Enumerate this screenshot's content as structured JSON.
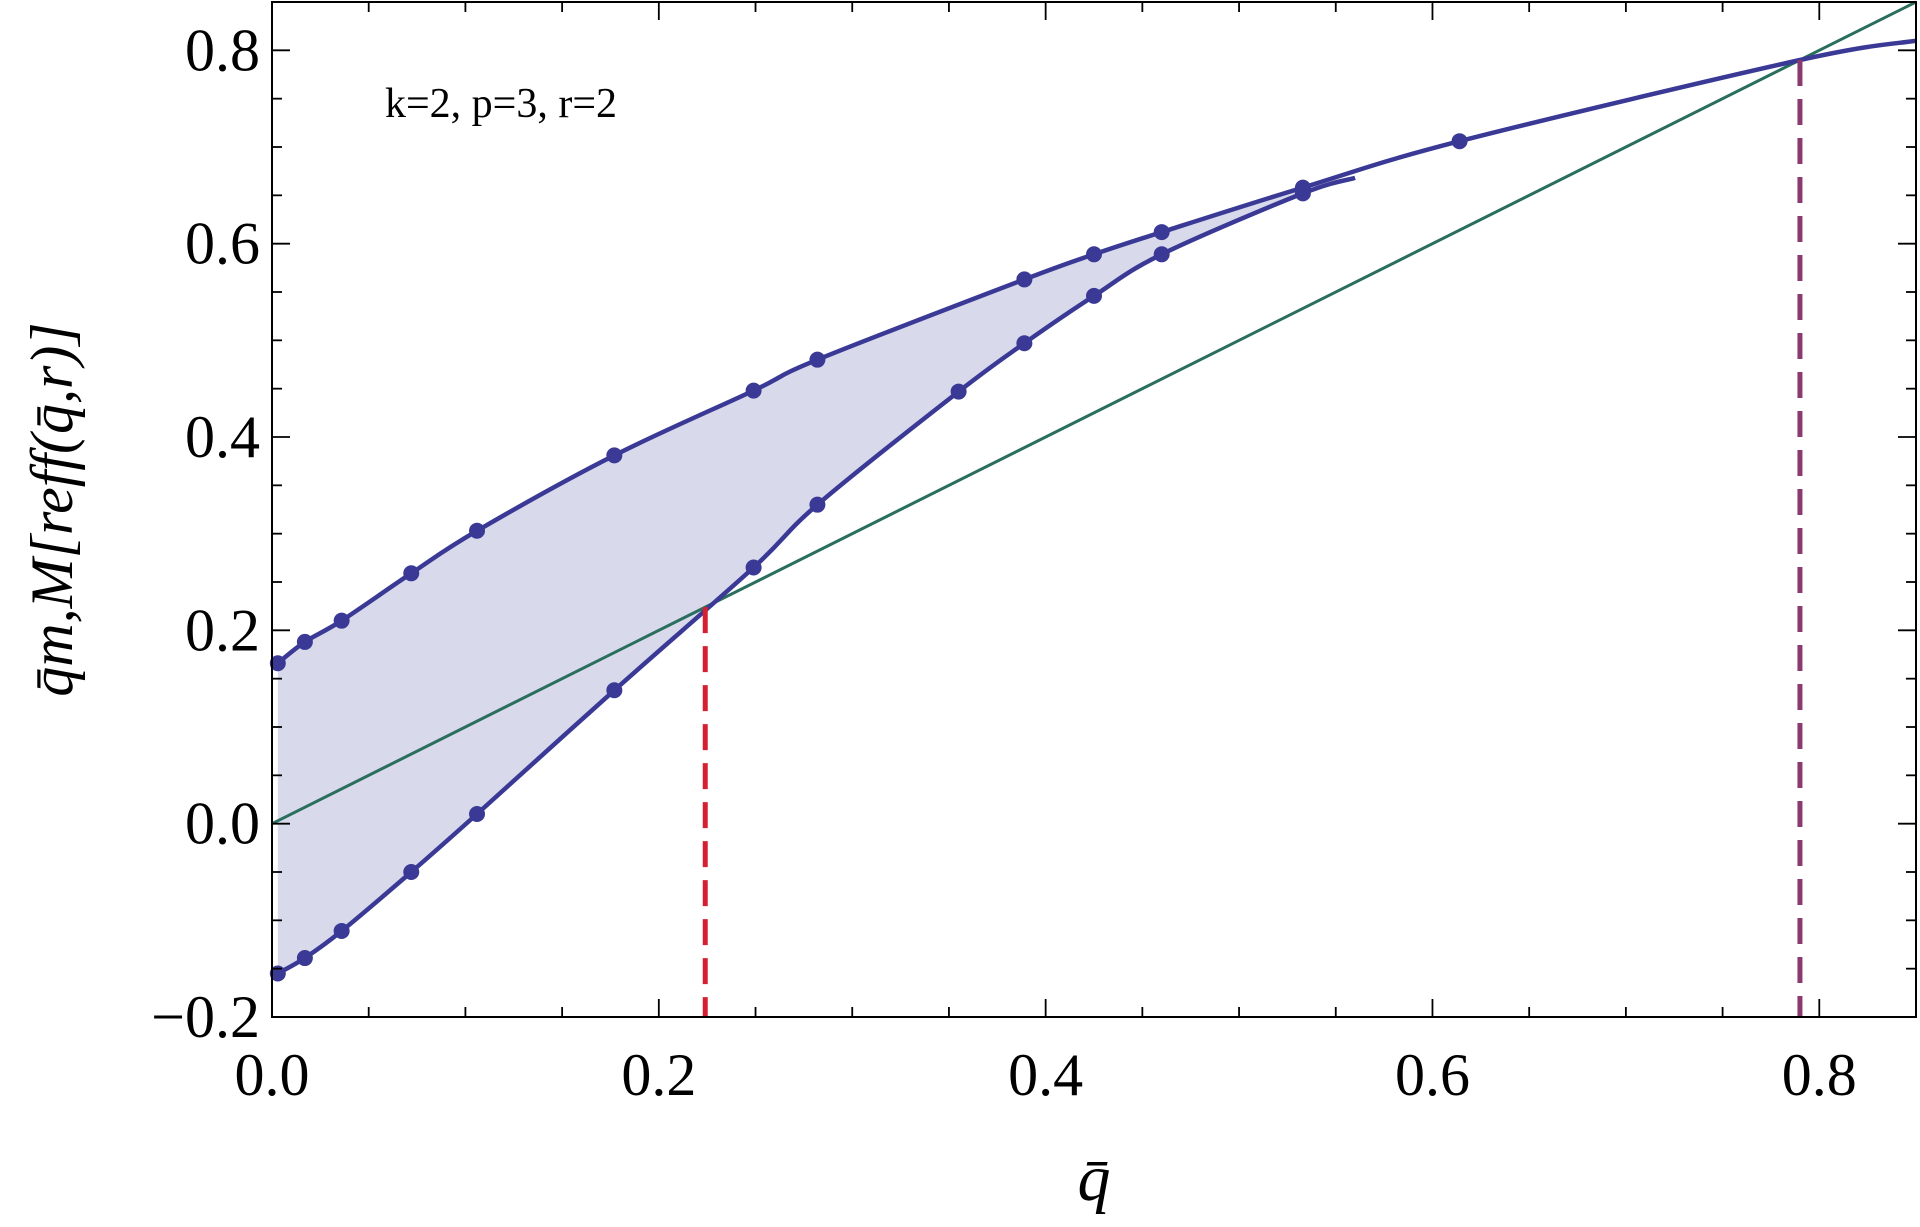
{
  "chart_data": {
    "type": "line",
    "annotation": "k=2, p=3, r=2",
    "xlabel": "q̄",
    "ylabel": "q̄m,M[reff(q̄,r)]",
    "xlim": [
      0.0,
      0.85
    ],
    "ylim": [
      -0.2,
      0.85
    ],
    "x_ticks": [
      0.0,
      0.2,
      0.4,
      0.6,
      0.8
    ],
    "x_tick_labels": [
      "0.0",
      "0.2",
      "0.4",
      "0.6",
      "0.8"
    ],
    "y_ticks": [
      -0.2,
      0.0,
      0.2,
      0.4,
      0.6,
      0.8
    ],
    "y_tick_labels": [
      "−0.2",
      "0.0",
      "0.2",
      "0.4",
      "0.6",
      "0.8"
    ],
    "grid": false,
    "colors": {
      "curve": "#3a3a96",
      "band_fill": "#d9d9ec",
      "diagonal": "#2a6e5e",
      "left_intersection": "#d42030",
      "right_intersection": "#8a3a6e"
    },
    "series": [
      {
        "points": [
          [
            0.003,
            0.166
          ],
          [
            0.017,
            0.188
          ],
          [
            0.036,
            0.21
          ],
          [
            0.072,
            0.259
          ],
          [
            0.106,
            0.303
          ],
          [
            0.177,
            0.381
          ],
          [
            0.249,
            0.448
          ],
          [
            0.282,
            0.48
          ],
          [
            0.389,
            0.563
          ],
          [
            0.425,
            0.589
          ],
          [
            0.46,
            0.612
          ],
          [
            0.533,
            0.658
          ],
          [
            0.614,
            0.706
          ]
        ]
      },
      {
        "points": [
          [
            0.003,
            -0.155
          ],
          [
            0.017,
            -0.139
          ],
          [
            0.036,
            -0.111
          ],
          [
            0.072,
            -0.05
          ],
          [
            0.106,
            0.01
          ],
          [
            0.177,
            0.138
          ],
          [
            0.249,
            0.265
          ],
          [
            0.282,
            0.33
          ],
          [
            0.355,
            0.447
          ],
          [
            0.389,
            0.497
          ],
          [
            0.425,
            0.546
          ],
          [
            0.46,
            0.589
          ],
          [
            0.533,
            0.652
          ]
        ]
      },
      {
        "x": [
          0.0,
          0.85
        ],
        "y": [
          0.0,
          0.85
        ]
      }
    ],
    "vertical_markers": [
      {
        "x": 0.224,
        "y_top": 0.224
      },
      {
        "x": 0.79,
        "y_top": 0.79
      }
    ]
  }
}
